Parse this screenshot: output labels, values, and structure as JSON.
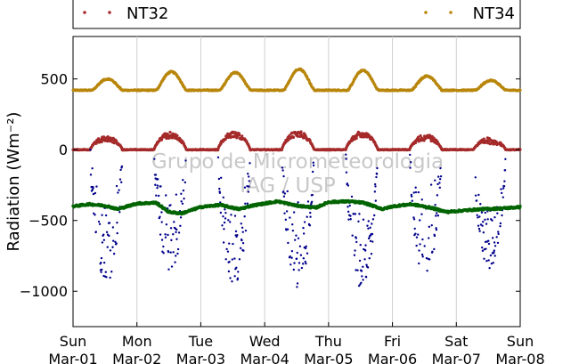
{
  "chart_data": {
    "type": "scatter",
    "ylabel": "Radiation (Wm⁻²)",
    "watermark": [
      "Grupo de Micrometeorologia",
      "IAG / USP"
    ],
    "ylim": [
      -1250,
      800
    ],
    "xlim": [
      0,
      7
    ],
    "y_ticks": [
      500,
      0,
      -500,
      -1000
    ],
    "y_tick_labels": [
      "500",
      "0",
      "−500",
      "−1000"
    ],
    "x_ticks": [
      {
        "day": 0,
        "weekday": "Sun",
        "date": "Mar-01"
      },
      {
        "day": 1,
        "weekday": "Mon",
        "date": "Mar-02"
      },
      {
        "day": 2,
        "weekday": "Tue",
        "date": "Mar-03"
      },
      {
        "day": 3,
        "weekday": "Wed",
        "date": "Mar-04"
      },
      {
        "day": 4,
        "weekday": "Thu",
        "date": "Mar-05"
      },
      {
        "day": 5,
        "weekday": "Fri",
        "date": "Mar-06"
      },
      {
        "day": 6,
        "weekday": "Sat",
        "date": "Mar-07"
      },
      {
        "day": 7,
        "weekday": "Sun",
        "date": "Mar-08"
      }
    ],
    "grid": "vertical",
    "legend_position": "top",
    "series": [
      {
        "name": "NT32",
        "color": "#a52a2a",
        "base": 0,
        "daily_peak": [
          100,
          125,
          130,
          135,
          130,
          110,
          85
        ]
      },
      {
        "name": "NT34",
        "color": "#b8860b",
        "base": 420,
        "daily_peak": [
          500,
          550,
          545,
          570,
          560,
          520,
          490
        ]
      },
      {
        "color": "#00008b",
        "base": 0,
        "daily_min": [
          -950,
          -870,
          -950,
          -980,
          -1000,
          -930,
          -850
        ]
      },
      {
        "color": "#006400",
        "base": -400,
        "points": [
          [
            0.0,
            -400
          ],
          [
            0.25,
            -385
          ],
          [
            0.5,
            -395
          ],
          [
            0.7,
            -420
          ],
          [
            1.0,
            -380
          ],
          [
            1.3,
            -375
          ],
          [
            1.5,
            -440
          ],
          [
            1.7,
            -450
          ],
          [
            2.0,
            -405
          ],
          [
            2.3,
            -390
          ],
          [
            2.6,
            -420
          ],
          [
            2.8,
            -395
          ],
          [
            3.0,
            -380
          ],
          [
            3.2,
            -365
          ],
          [
            3.5,
            -395
          ],
          [
            3.8,
            -410
          ],
          [
            4.0,
            -370
          ],
          [
            4.3,
            -365
          ],
          [
            4.55,
            -375
          ],
          [
            4.85,
            -420
          ],
          [
            5.0,
            -400
          ],
          [
            5.3,
            -385
          ],
          [
            5.6,
            -410
          ],
          [
            5.85,
            -440
          ],
          [
            6.1,
            -430
          ],
          [
            6.4,
            -420
          ],
          [
            6.7,
            -415
          ],
          [
            7.0,
            -405
          ]
        ]
      }
    ]
  }
}
